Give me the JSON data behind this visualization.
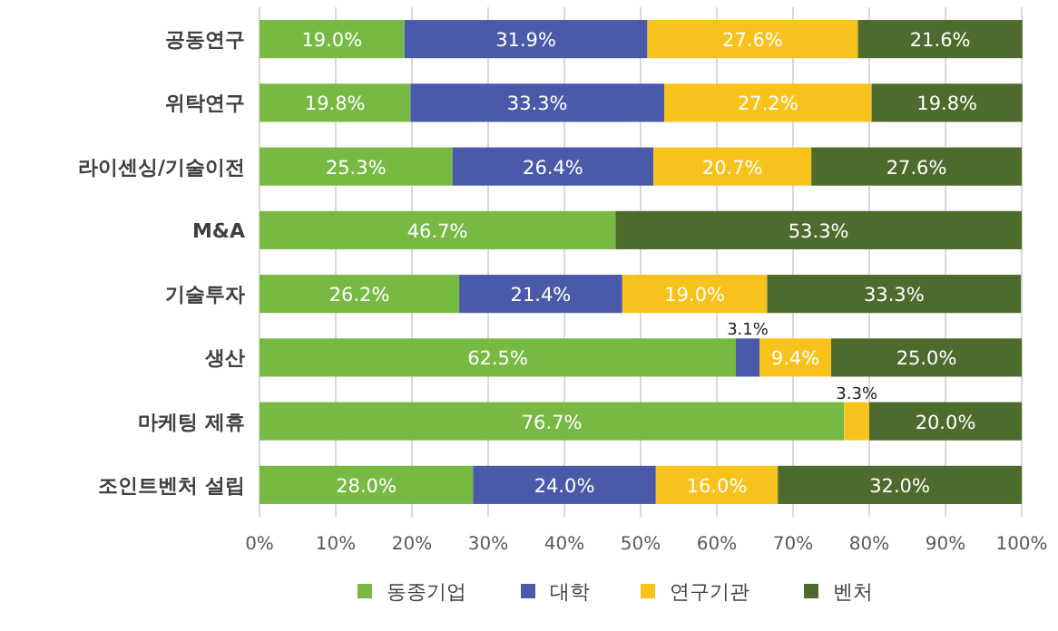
{
  "chart_data": {
    "type": "bar",
    "orientation": "horizontal",
    "stacked": true,
    "categories": [
      "공동연구",
      "위탁연구",
      "라이센싱/기술이전",
      "M&A",
      "기술투자",
      "생산",
      "마케팅 제휴",
      "조인트벤처 설립"
    ],
    "series": [
      {
        "name": "동종기업",
        "color": "#78b944",
        "values": [
          19.0,
          19.8,
          25.3,
          46.7,
          26.2,
          62.5,
          76.7,
          28.0
        ],
        "value_labels": [
          "19.0%",
          "19.8%",
          "25.3%",
          "46.7%",
          "26.2%",
          "62.5%",
          "76.7%",
          "28.0%"
        ]
      },
      {
        "name": "대학",
        "color": "#4a5aa8",
        "values": [
          31.9,
          33.3,
          26.4,
          0,
          21.4,
          3.1,
          0,
          24.0
        ],
        "value_labels": [
          "31.9%",
          "33.3%",
          "26.4%",
          null,
          "21.4%",
          "3.1%",
          null,
          "24.0%"
        ]
      },
      {
        "name": "연구기관",
        "color": "#f7c21c",
        "values": [
          27.6,
          27.2,
          20.7,
          0,
          19.0,
          9.4,
          3.3,
          16.0
        ],
        "value_labels": [
          "27.6%",
          "27.2%",
          "20.7%",
          null,
          "19.0%",
          "9.4%",
          "3.3%",
          "16.0%"
        ]
      },
      {
        "name": "벤처",
        "color": "#4c6b2c",
        "values": [
          21.6,
          19.8,
          27.6,
          53.3,
          33.3,
          25.0,
          20.0,
          32.0
        ],
        "value_labels": [
          "21.6%",
          "19.8%",
          "27.6%",
          "53.3%",
          "33.3%",
          "25.0%",
          "20.0%",
          "32.0%"
        ]
      }
    ],
    "xlim": [
      0,
      100
    ],
    "xticks": [
      {
        "value": 0,
        "label": "0%"
      },
      {
        "value": 10,
        "label": "10%"
      },
      {
        "value": 20,
        "label": "20%"
      },
      {
        "value": 30,
        "label": "30%"
      },
      {
        "value": 40,
        "label": "40%"
      },
      {
        "value": 50,
        "label": "50%"
      },
      {
        "value": 60,
        "label": "60%"
      },
      {
        "value": 70,
        "label": "70%"
      },
      {
        "value": 80,
        "label": "80%"
      },
      {
        "value": 90,
        "label": "90%"
      },
      {
        "value": 100,
        "label": "100%"
      }
    ],
    "grid": "x",
    "legend": "bottom"
  }
}
